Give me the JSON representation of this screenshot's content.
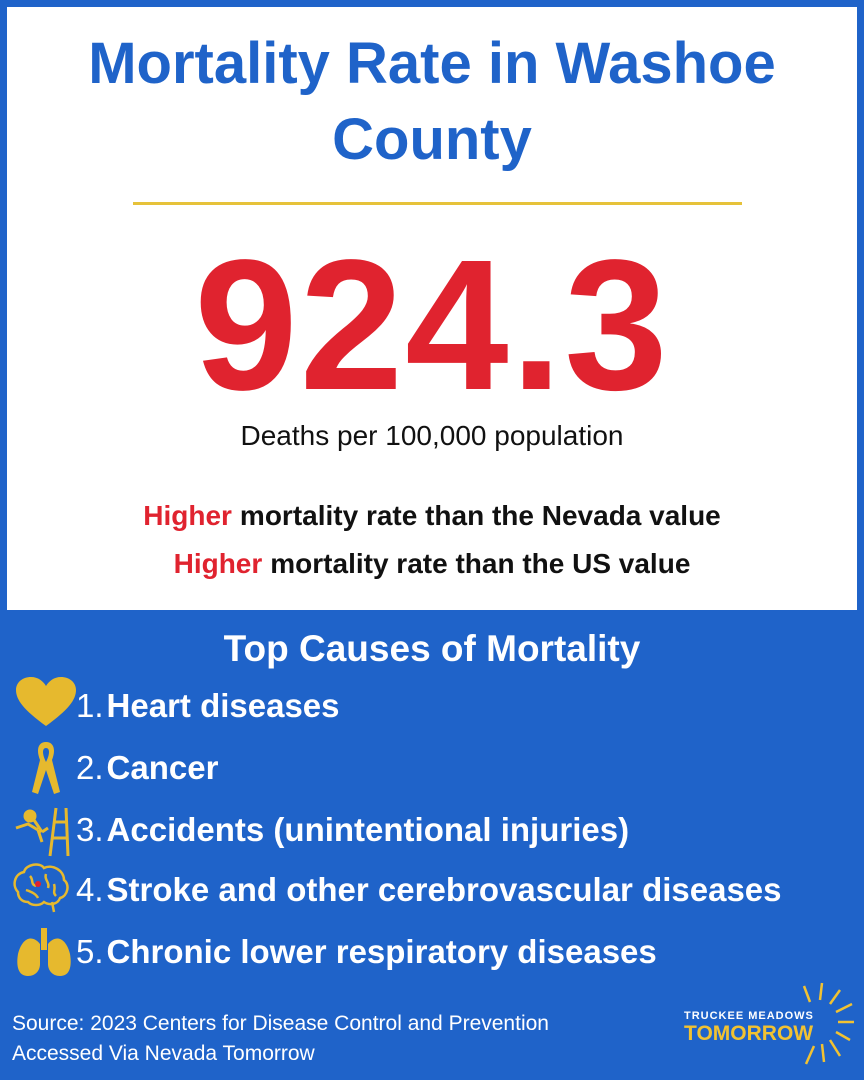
{
  "header": {
    "title": "Mortality Rate in Washoe County"
  },
  "stat": {
    "value": "924.3",
    "unit": "Deaths per 100,000 population"
  },
  "comparisons": [
    {
      "emphasis": "Higher",
      "text": "mortality rate than the Nevada value"
    },
    {
      "emphasis": "Higher",
      "text": "mortality rate than the US value"
    }
  ],
  "causes": {
    "title": "Top Causes of Mortality",
    "items": [
      {
        "number": "1.",
        "label": "Heart diseases"
      },
      {
        "number": "2.",
        "label": "Cancer"
      },
      {
        "number": "3.",
        "label": "Accidents (unintentional injuries)"
      },
      {
        "number": "4.",
        "label": "Stroke and other cerebrovascular diseases"
      },
      {
        "number": "5.",
        "label": "Chronic lower respiratory diseases"
      }
    ]
  },
  "source": {
    "line1": "Source: 2023 Centers for Disease Control and Prevention",
    "line2": "Accessed Via Nevada Tomorrow"
  },
  "logo": {
    "top": "TRUCKEE MEADOWS",
    "bottom": "TOMORROW"
  }
}
